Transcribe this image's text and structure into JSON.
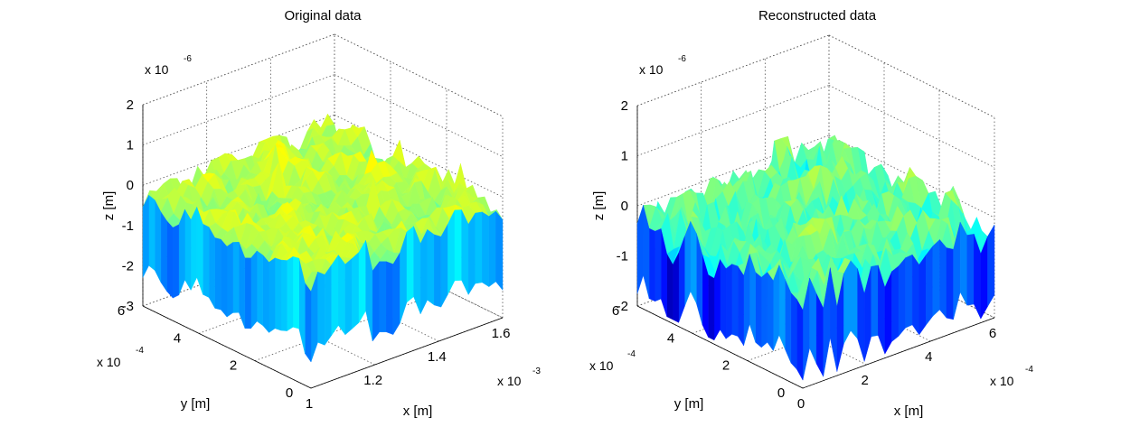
{
  "chart_data": [
    {
      "type": "surface",
      "title": "Original data",
      "xlabel": "x [m]",
      "ylabel": "y [m]",
      "zlabel": "z [m]",
      "x_ticks": [
        "1",
        "1.2",
        "1.4",
        "1.6"
      ],
      "x_multiplier": "x 10",
      "x_exponent": "-3",
      "y_ticks": [
        "0",
        "2",
        "4",
        "6"
      ],
      "y_multiplier": "x 10",
      "y_exponent": "-4",
      "z_ticks": [
        "-3",
        "-2",
        "-1",
        "0",
        "1",
        "2"
      ],
      "z_multiplier": "x 10",
      "z_exponent": "-6",
      "xlim": [
        1.0,
        1.6
      ],
      "ylim": [
        0,
        6
      ],
      "zlim": [
        -3,
        2
      ],
      "grid": true,
      "colormap": "jet",
      "seed": 7
    },
    {
      "type": "surface",
      "title": "Reconstructed data",
      "xlabel": "x [m]",
      "ylabel": "y [m]",
      "zlabel": "z [m]",
      "x_ticks": [
        "0",
        "2",
        "4",
        "6"
      ],
      "x_multiplier": "x 10",
      "x_exponent": "-4",
      "y_ticks": [
        "0",
        "2",
        "4",
        "6"
      ],
      "y_multiplier": "x 10",
      "y_exponent": "-4",
      "z_ticks": [
        "-2",
        "-1",
        "0",
        "1",
        "2"
      ],
      "z_multiplier": "x 10",
      "z_exponent": "-6",
      "xlim": [
        0,
        6
      ],
      "ylim": [
        0,
        6
      ],
      "zlim": [
        -2,
        2
      ],
      "grid": true,
      "colormap": "jet",
      "seed": 19
    }
  ]
}
